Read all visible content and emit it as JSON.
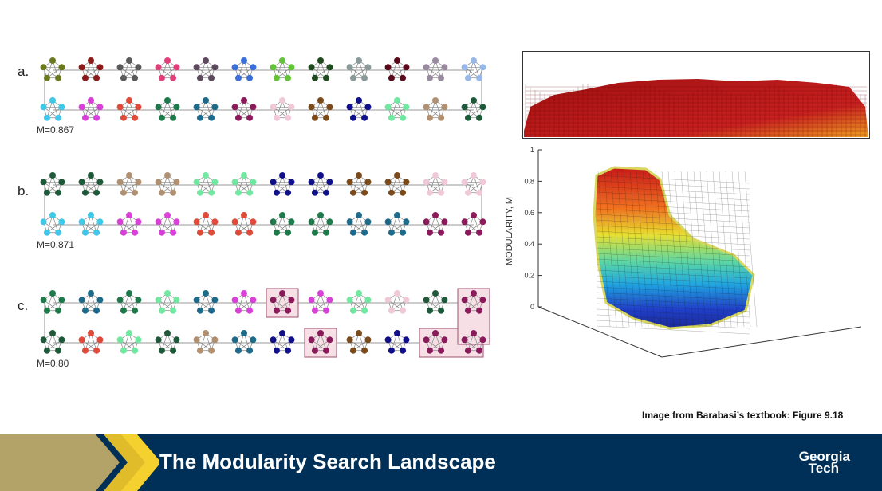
{
  "panels": [
    {
      "label": "a.",
      "modularity": "M=0.867",
      "top_colors": [
        "#6b7a1e",
        "#8b1a1a",
        "#5a5a5a",
        "#e0407a",
        "#5e4a5e",
        "#3a6fd8",
        "#62c23a",
        "#1e4a1e",
        "#8a9a9a",
        "#5a0a1a",
        "#9a8aa0",
        "#98b8e8"
      ],
      "bottom_colors": [
        "#40c8e8",
        "#d840d8",
        "#e04a3a",
        "#1e7a4a",
        "#1e6a8a",
        "#8a1a5a",
        "#f0c8d8",
        "#7a4a1a",
        "#10108a",
        "#70e8a0",
        "#b09070",
        "#1e5a3a"
      ]
    },
    {
      "label": "b.",
      "modularity": "M=0.871",
      "top_colors": [
        "#1e5a3a",
        "#1e5a3a",
        "#b09070",
        "#b09070",
        "#70e8a0",
        "#70e8a0",
        "#10108a",
        "#10108a",
        "#7a4a1a",
        "#7a4a1a",
        "#f0c8d8",
        "#f0c8d8"
      ],
      "bottom_colors": [
        "#40c8e8",
        "#40c8e8",
        "#d840d8",
        "#d840d8",
        "#e04a3a",
        "#e04a3a",
        "#1e7a4a",
        "#1e7a4a",
        "#1e6a8a",
        "#1e6a8a",
        "#8a1a5a",
        "#8a1a5a"
      ]
    },
    {
      "label": "c.",
      "modularity": "M=0.80",
      "top_colors": [
        "#1e7a4a",
        "#1e6a8a",
        "#1e7a4a",
        "#70e8a0",
        "#1e6a8a",
        "#d840d8",
        "#8a1a5a",
        "#d840d8",
        "#70e8a0",
        "#f0c8d8",
        "#1e5a3a",
        "#8a1a5a"
      ],
      "bottom_colors": [
        "#1e5a3a",
        "#e04a3a",
        "#70e8a0",
        "#1e5a3a",
        "#b09070",
        "#1e6a8a",
        "#10108a",
        "#8a1a5a",
        "#7a4a1a",
        "#10108a",
        "#8a1a5a",
        "#8a1a5a"
      ]
    }
  ],
  "surface": {
    "ylabel": "MODULARITY, M",
    "yticks": [
      "0",
      "0.2",
      "0.4",
      "0.6",
      "0.8",
      "1"
    ]
  },
  "caption": "Image from Barabasi’s textbook: Figure 9.18",
  "footer": {
    "title": "The Modularity Search Landscape",
    "logo_line1": "Georgia",
    "logo_line2": "Tech"
  }
}
